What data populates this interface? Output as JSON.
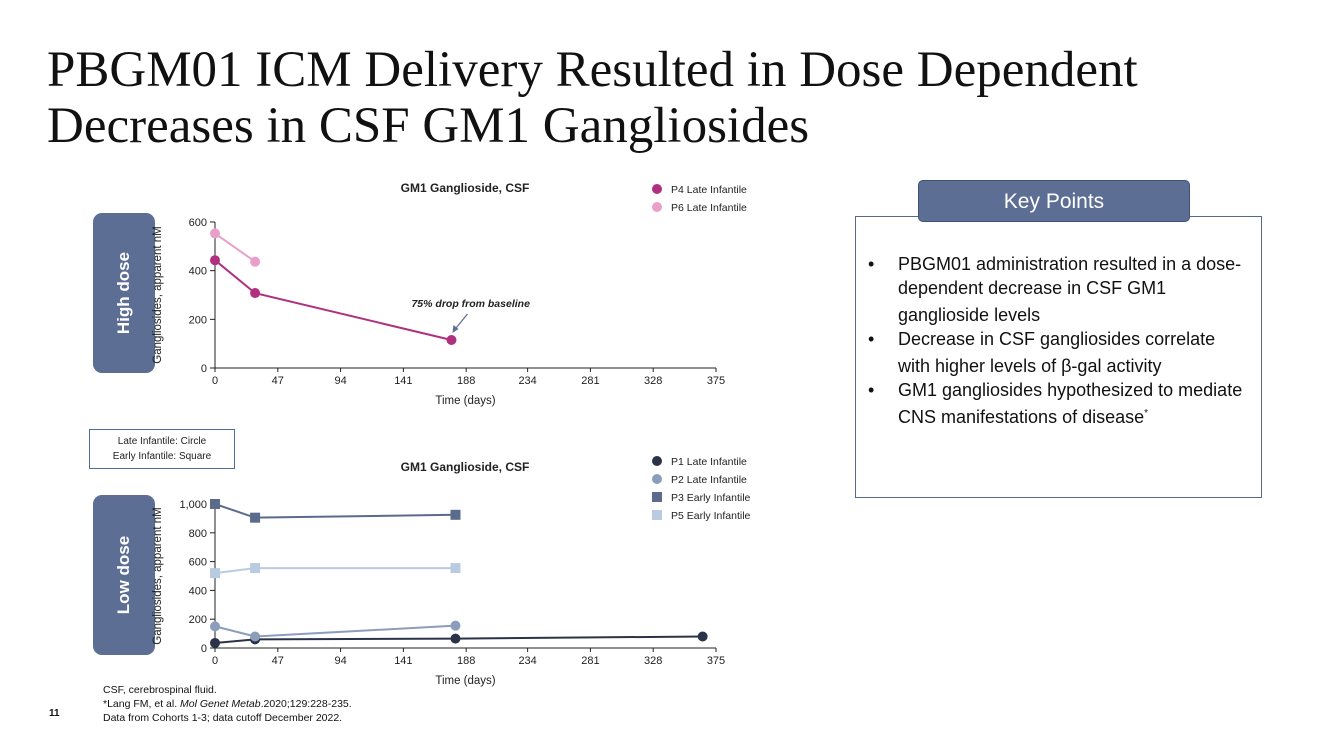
{
  "slide": {
    "title": "PBGM01 ICM Delivery Resulted in Dose Dependent Decreases in CSF GM1 Gangliosides",
    "page_number": "11"
  },
  "dose_labels": {
    "high": "High dose",
    "low": "Low dose"
  },
  "shape_legend": {
    "line1": "Late Infantile: Circle",
    "line2": "Early Infantile: Square"
  },
  "key_points": {
    "header": "Key Points",
    "items": [
      {
        "bullet": "•",
        "text": "PBGM01 administration resulted in a dose-dependent decrease in CSF GM1 ganglioside levels",
        "sup": ""
      },
      {
        "bullet": "•",
        "text": "Decrease in CSF gangliosides correlate with higher levels of β-gal activity",
        "sup": ""
      },
      {
        "bullet": "•",
        "text": "GM1 gangliosides hypothesized to mediate CNS manifestations of disease",
        "sup": "*"
      }
    ]
  },
  "footnotes": {
    "line1": "CSF, cerebrospinal fluid.",
    "line2_pre": "*Lang FM, et al. ",
    "line2_journal": "Mol Genet Metab",
    "line2_post": ".2020;129:228-235.",
    "line3": "Data from Cohorts 1-3; data cutoff December 2022."
  },
  "chart_data": [
    {
      "type": "line",
      "title": "GM1 Ganglioside, CSF",
      "xlabel": "Time (days)",
      "ylabel": "Gangliosides, apparent nM",
      "xlim": [
        0,
        375
      ],
      "ylim": [
        0,
        600
      ],
      "x_ticks": [
        0,
        47,
        94,
        141,
        188,
        234,
        281,
        328,
        375
      ],
      "y_ticks": [
        0,
        200,
        400,
        600
      ],
      "y_tick_labels": [
        "0",
        "200",
        "400",
        "600"
      ],
      "legend_position": "top-right",
      "annotation": {
        "text": "75% drop from baseline",
        "x": 177,
        "y": 115
      },
      "series": [
        {
          "name": "P4 Late Infantile",
          "marker": "circle",
          "color": "#b0307f",
          "x": [
            0,
            30,
            177
          ],
          "y": [
            443,
            308,
            115
          ]
        },
        {
          "name": "P6 Late Infantile",
          "marker": "circle",
          "color": "#e8a0c9",
          "x": [
            0,
            30
          ],
          "y": [
            553,
            437
          ]
        }
      ]
    },
    {
      "type": "line",
      "title": "GM1 Ganglioside, CSF",
      "xlabel": "Time (days)",
      "ylabel": "Gangliosides, apparent nM",
      "xlim": [
        0,
        375
      ],
      "ylim": [
        0,
        1000
      ],
      "x_ticks": [
        0,
        47,
        94,
        141,
        188,
        234,
        281,
        328,
        375
      ],
      "y_ticks": [
        0,
        200,
        400,
        600,
        800,
        1000
      ],
      "y_tick_labels": [
        "0",
        "200",
        "400",
        "600",
        "800",
        "1,000"
      ],
      "legend_position": "top-right",
      "series": [
        {
          "name": "P1 Late Infantile",
          "marker": "circle",
          "color": "#2a3347",
          "x": [
            0,
            30,
            180,
            365
          ],
          "y": [
            35,
            60,
            65,
            80
          ]
        },
        {
          "name": "P2 Late Infantile",
          "marker": "circle",
          "color": "#8c9dbb",
          "x": [
            0,
            30,
            180
          ],
          "y": [
            150,
            80,
            155
          ]
        },
        {
          "name": "P3 Early Infantile",
          "marker": "square",
          "color": "#5a6b8c",
          "x": [
            0,
            30,
            180
          ],
          "y": [
            1000,
            905,
            925
          ]
        },
        {
          "name": "P5 Early Infantile",
          "marker": "square",
          "color": "#b8cbe0",
          "x": [
            0,
            30,
            180
          ],
          "y": [
            520,
            555,
            555
          ]
        }
      ]
    }
  ]
}
